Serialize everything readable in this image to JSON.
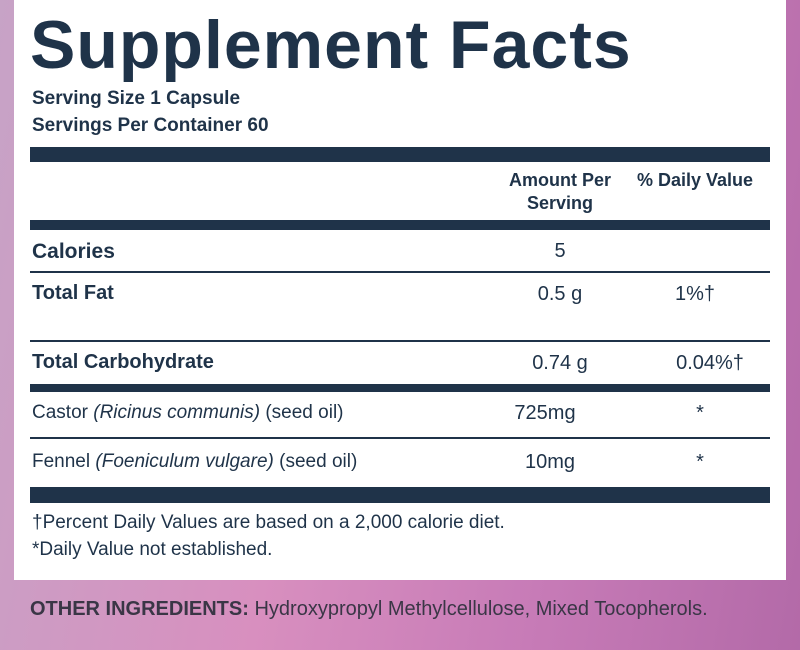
{
  "header": {
    "title": "Supplement Facts",
    "serving_size": "Serving Size 1 Capsule",
    "servings_per_container": "Servings Per Container 60"
  },
  "table": {
    "columns": [
      "Amount Per Serving",
      "% Daily Value"
    ],
    "rows": [
      {
        "name": "Calories",
        "amount": "5"
      },
      {
        "name": "Total Fat",
        "amount": "0.5 g",
        "daily_value": "1%†"
      },
      {
        "name": "Total Carbohydrate",
        "amount": "0.74 g",
        "daily_value": "0.04%†"
      },
      {
        "name": "Castor",
        "latin": "(Ricinus communis)",
        "part": "(seed oil)",
        "amount": "725mg",
        "daily_value": "*"
      },
      {
        "name": "Fennel",
        "latin": "(Foeniculum vulgare)",
        "part": "(seed oil)",
        "amount": "10mg",
        "daily_value": "*"
      }
    ]
  },
  "footnotes": [
    "†Percent Daily Values are based on a 2,000 calorie diet.",
    "*Daily Value not established."
  ],
  "other_ingredients": {
    "label": "OTHER INGREDIENTS:",
    "text": "Hydroxypropyl Methylcellulose, Mixed Tocopherols."
  }
}
